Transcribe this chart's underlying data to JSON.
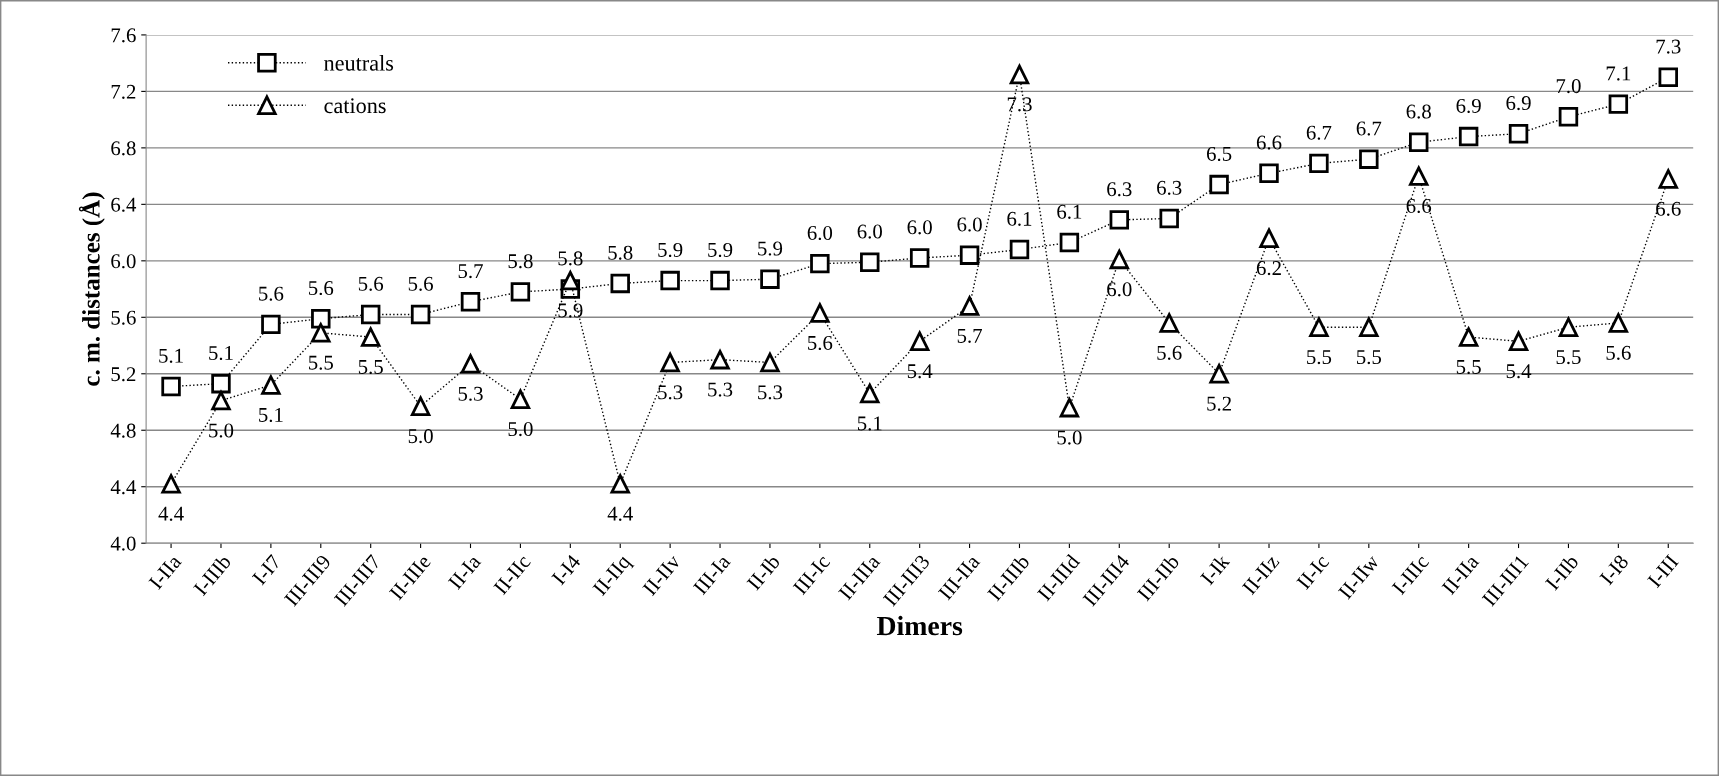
{
  "chart_data": {
    "type": "line",
    "xlabel": "Dimers",
    "ylabel": "c. m. distances (Å)",
    "categories": [
      "I-IIa",
      "I-IIIb",
      "I-I7",
      "III-III9",
      "III-III7",
      "II-IIIe",
      "II-Ia",
      "II-IIc",
      "I-I4",
      "II-IIq",
      "II-IIv",
      "III-Ia",
      "II-Ib",
      "III-Ic",
      "II-IIIa",
      "III-III3",
      "III-IIa",
      "II-IIIb",
      "II-IIId",
      "III-III4",
      "III-IIb",
      "I-Ik",
      "II-IIz",
      "II-Ic",
      "II-IIw",
      "I-IIIc",
      "II-IIa",
      "III-III1",
      "I-IIb",
      "I-I8",
      "I-III"
    ],
    "series": [
      {
        "name": "neutrals",
        "color": "#000000",
        "marker": "square",
        "line_style": "dotted",
        "values": [
          5.11,
          5.13,
          5.55,
          5.59,
          5.62,
          5.62,
          5.71,
          5.78,
          5.8,
          5.84,
          5.86,
          5.86,
          5.87,
          5.98,
          5.99,
          6.02,
          6.04,
          6.08,
          6.13,
          6.29,
          6.3,
          6.54,
          6.62,
          6.69,
          6.72,
          6.84,
          6.88,
          6.9,
          7.02,
          7.11,
          7.3
        ],
        "value_labels": [
          "5.1",
          "5.1",
          "5.6",
          "5.6",
          "5.6",
          "5.6",
          "5.7",
          "5.8",
          "5.8",
          "5.8",
          "5.9",
          "5.9",
          "5.9",
          "6.0",
          "6.0",
          "6.0",
          "6.0",
          "6.1",
          "6.1",
          "6.3",
          "6.3",
          "6.5",
          "6.6",
          "6.7",
          "6.7",
          "6.8",
          "6.9",
          "6.9",
          "7.0",
          "7.1",
          "7.3"
        ]
      },
      {
        "name": "cations",
        "color": "#000000",
        "marker": "triangle",
        "line_style": "dotted",
        "values": [
          4.42,
          5.01,
          5.12,
          5.49,
          5.46,
          4.97,
          5.27,
          5.02,
          5.86,
          4.42,
          5.28,
          5.3,
          5.28,
          5.63,
          5.06,
          5.43,
          5.68,
          7.32,
          4.96,
          6.01,
          5.56,
          5.2,
          6.16,
          5.53,
          5.53,
          6.6,
          5.46,
          5.43,
          5.53,
          5.56,
          6.58
        ],
        "value_labels": [
          "4.4",
          "5.0",
          "5.1",
          "5.5",
          "5.5",
          "5.0",
          "5.3",
          "5.0",
          "5.9",
          "4.4",
          "5.3",
          "5.3",
          "5.3",
          "5.6",
          "5.1",
          "5.4",
          "5.7",
          "7.3",
          "5.0",
          "6.0",
          "5.6",
          "5.2",
          "6.2",
          "5.5",
          "5.5",
          "6.6",
          "5.5",
          "5.4",
          "5.5",
          "5.6",
          "6.6"
        ]
      }
    ],
    "ylim": [
      4.0,
      7.6
    ],
    "yticks": [
      {
        "value": 4.0,
        "label": "4.0"
      },
      {
        "value": 4.4,
        "label": "4.4"
      },
      {
        "value": 4.8,
        "label": "4.8"
      },
      {
        "value": 5.2,
        "label": "5.2"
      },
      {
        "value": 5.6,
        "label": "5.6"
      },
      {
        "value": 6.0,
        "label": "6.0"
      },
      {
        "value": 6.4,
        "label": "6.4"
      },
      {
        "value": 6.8,
        "label": "6.8"
      },
      {
        "value": 7.2,
        "label": "7.2"
      },
      {
        "value": 7.6,
        "label": "7.6"
      }
    ],
    "grid": "y",
    "legend": "top left"
  }
}
